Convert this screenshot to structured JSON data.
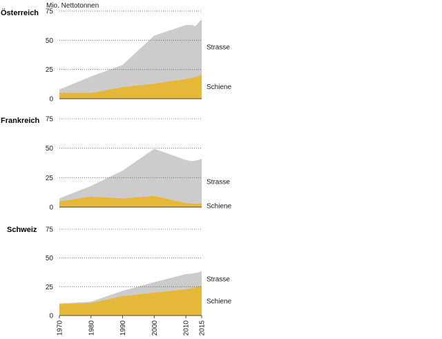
{
  "unit_label": "Mio. Nettotonnen",
  "colors": {
    "road": "#cccccc",
    "rail": "#e6b83a",
    "grid": "#555555",
    "axis": "#444444"
  },
  "chart_data": [
    {
      "type": "area",
      "title": "Österreich",
      "x": [
        1970,
        1980,
        1990,
        2000,
        2010,
        2012,
        2013,
        2014,
        2015
      ],
      "series": [
        {
          "name": "Schiene",
          "values": [
            5,
            5,
            10,
            13,
            17,
            18,
            18.5,
            19.5,
            21
          ]
        },
        {
          "name": "Strasse",
          "values": [
            3,
            14,
            19,
            41,
            46,
            45,
            43.5,
            45.5,
            47
          ]
        }
      ],
      "yticks": [
        0,
        25,
        50,
        75
      ],
      "ylim": [
        0,
        75
      ],
      "xlim": [
        1970,
        2015
      ],
      "stacked": true,
      "grid": true
    },
    {
      "type": "area",
      "title": "Frankreich",
      "x": [
        1970,
        1980,
        1990,
        2000,
        2010,
        2012,
        2013,
        2014,
        2015
      ],
      "series": [
        {
          "name": "Schiene",
          "values": [
            5,
            9,
            7.5,
            9.5,
            3.5,
            3,
            3,
            3,
            3
          ]
        },
        {
          "name": "Strasse",
          "values": [
            2.5,
            9,
            23.5,
            40,
            36.5,
            36,
            36.5,
            37,
            38
          ]
        }
      ],
      "yticks": [
        0,
        25,
        50,
        75
      ],
      "ylim": [
        0,
        75
      ],
      "xlim": [
        1970,
        2015
      ],
      "stacked": true,
      "grid": true
    },
    {
      "type": "area",
      "title": "Schweiz",
      "x": [
        1970,
        1980,
        1990,
        2000,
        2010,
        2012,
        2013,
        2014,
        2015
      ],
      "series": [
        {
          "name": "Schiene",
          "values": [
            10,
            11,
            17,
            20,
            23,
            24,
            24.5,
            25,
            26
          ]
        },
        {
          "name": "Strasse",
          "values": [
            0.5,
            1,
            4.5,
            9,
            13,
            12.5,
            12.5,
            12.5,
            12.5
          ]
        }
      ],
      "yticks": [
        0,
        25,
        50,
        75
      ],
      "ylim": [
        0,
        75
      ],
      "xlim": [
        1970,
        2015
      ],
      "xticks": [
        1970,
        1980,
        1990,
        2000,
        2010,
        2015
      ],
      "stacked": true,
      "grid": true
    }
  ]
}
